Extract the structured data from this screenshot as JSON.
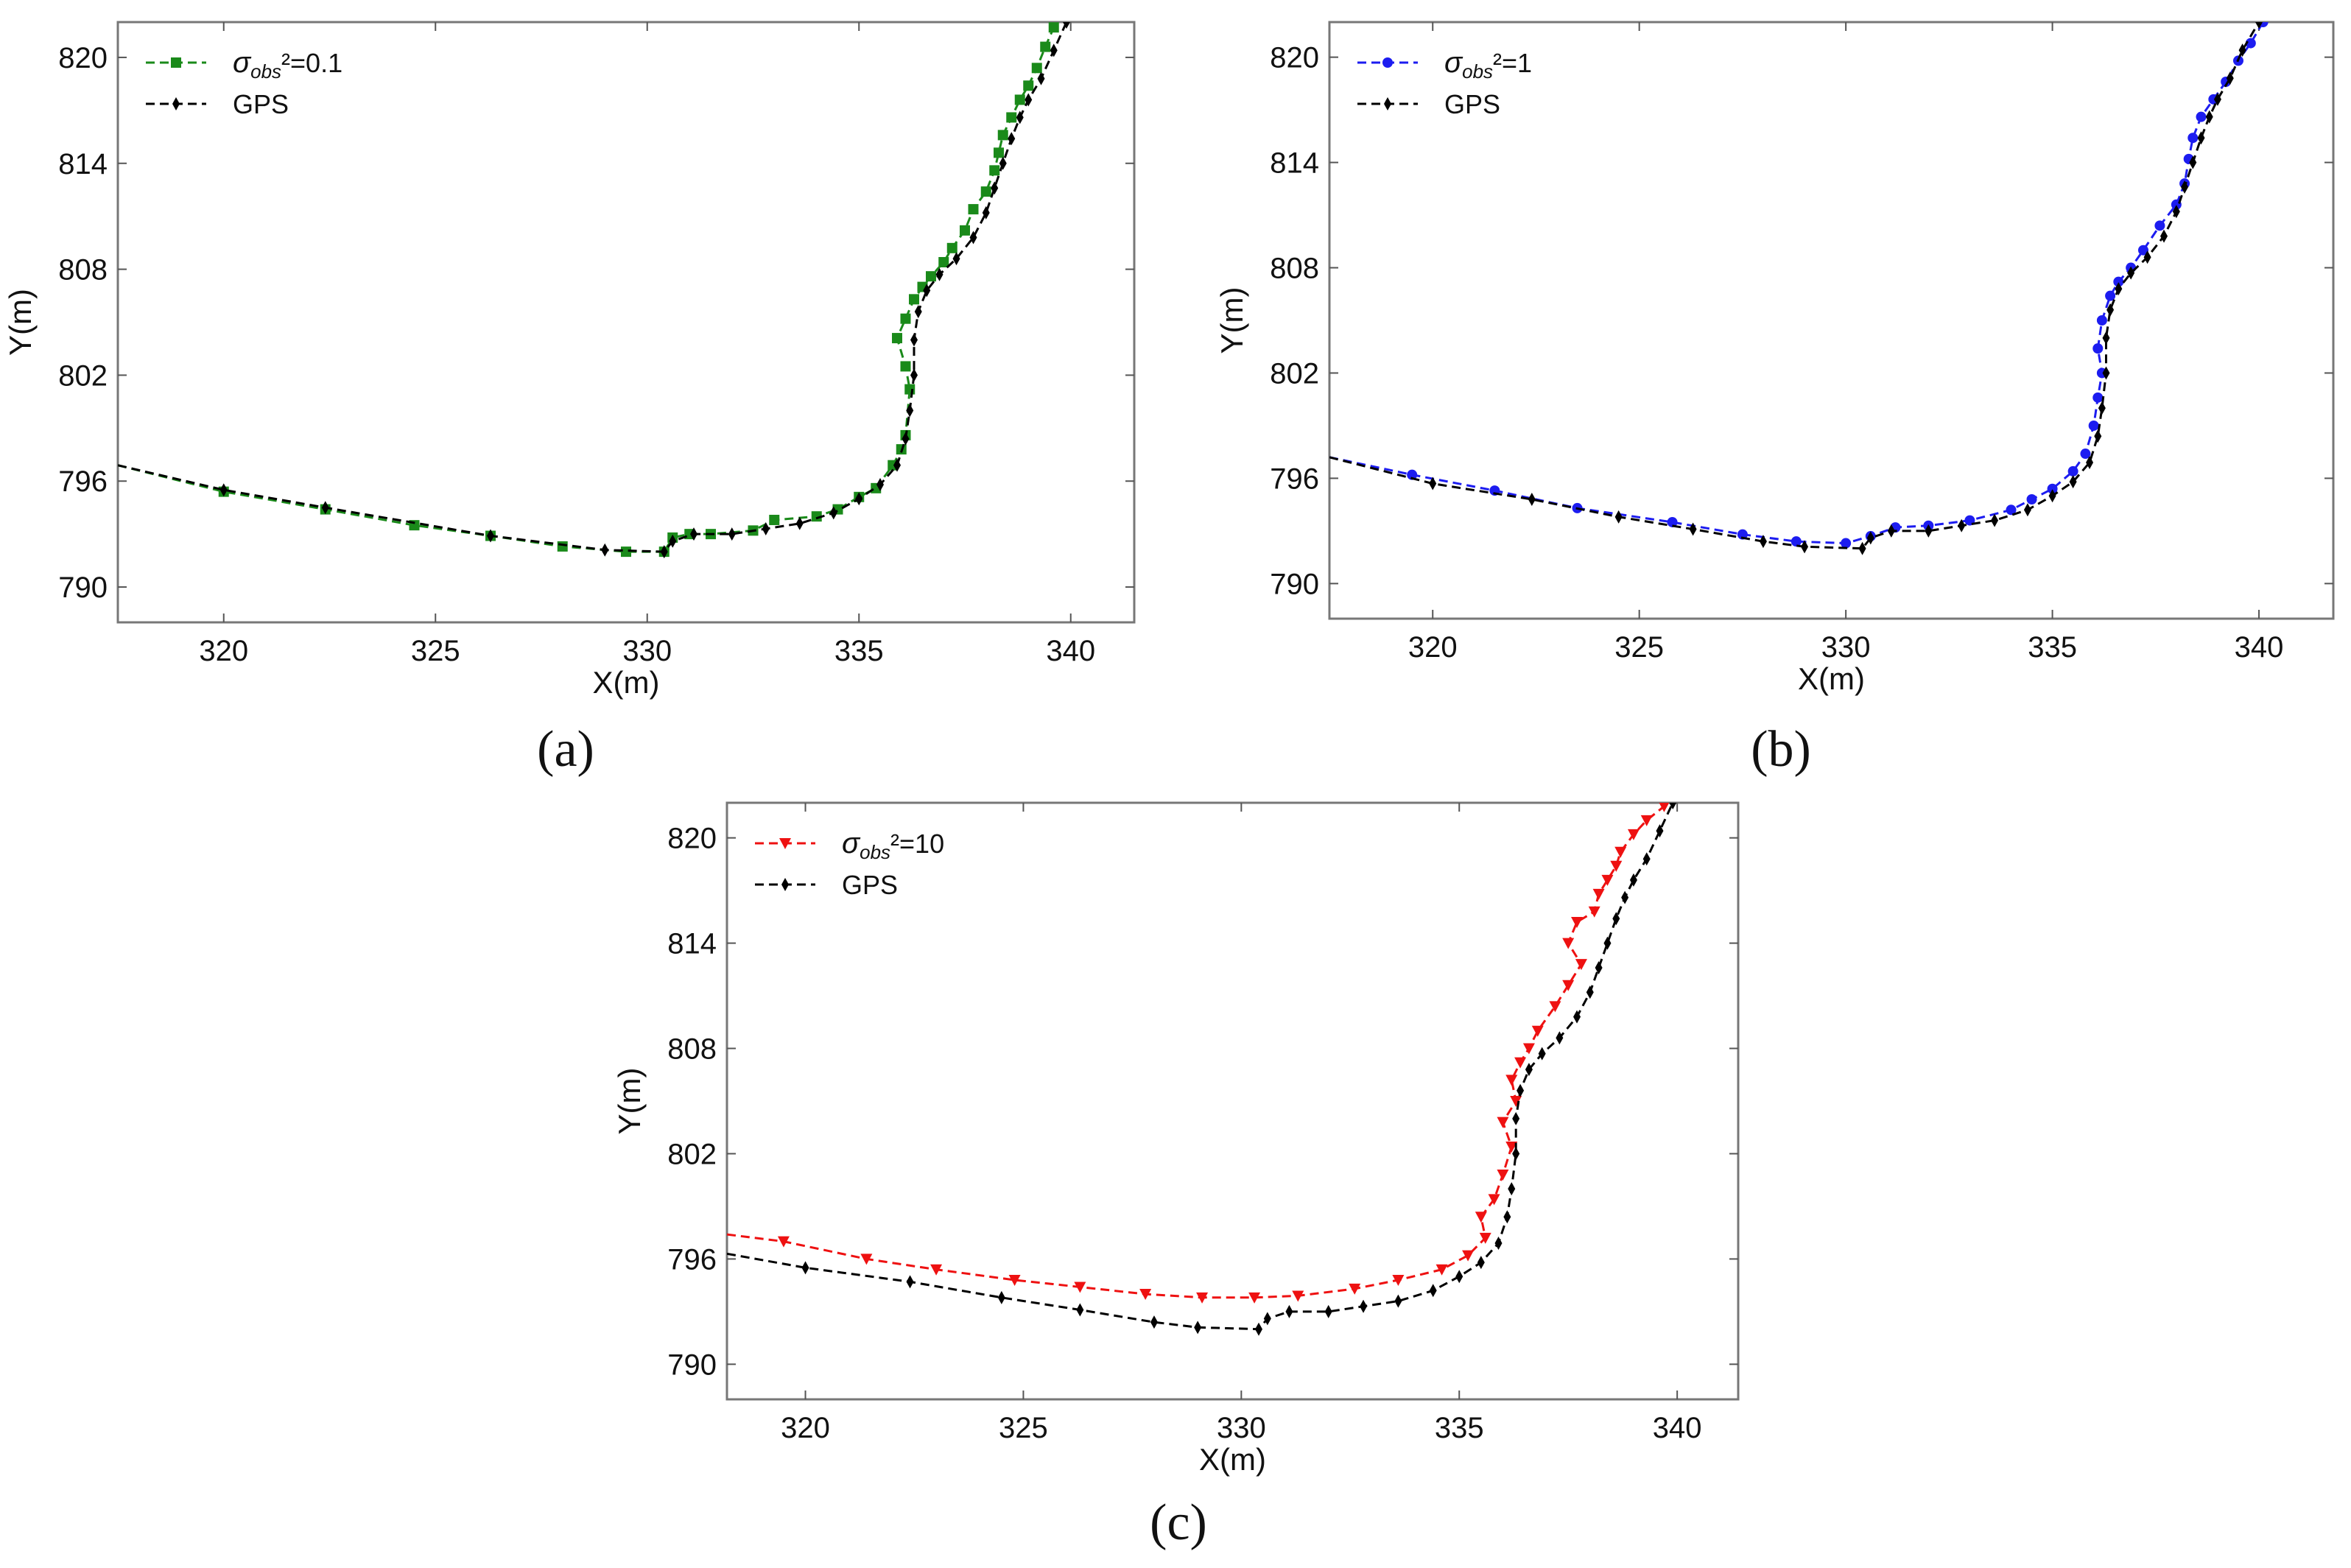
{
  "chart_data": [
    {
      "type": "line",
      "panel_label": "a",
      "xlabel": "X(m)",
      "ylabel": "Y(m)",
      "xlim": [
        317.5,
        341.5
      ],
      "ylim": [
        788,
        822
      ],
      "xticks": [
        320,
        325,
        330,
        335,
        340
      ],
      "yticks": [
        790,
        796,
        802,
        808,
        814,
        820
      ],
      "legend": {
        "location": "top-left",
        "entries": [
          "σobs²=0.1",
          "GPS"
        ]
      },
      "series": [
        {
          "name": "σobs²=0.1",
          "sigma_text": "σ",
          "sub_text": "obs",
          "sup_text": "²=0.1",
          "color": "#1a8a1a",
          "marker": "square",
          "x": [
            317.5,
            320,
            322.4,
            324.5,
            326.3,
            328,
            329.5,
            330.4,
            330.6,
            331,
            331.5,
            332.5,
            333,
            334,
            334.5,
            335,
            335.4,
            335.8,
            336.0,
            336.1,
            336.2,
            336.1,
            335.9,
            336.1,
            336.3,
            336.5,
            336.7,
            337.0,
            337.2,
            337.5,
            337.7,
            338.0,
            338.2,
            338.3,
            338.4,
            338.6,
            338.8,
            339.0,
            339.2,
            339.4,
            339.6
          ],
          "y": [
            796.9,
            795.4,
            794.4,
            793.5,
            792.9,
            792.3,
            792.0,
            792.0,
            792.8,
            793.0,
            793.0,
            793.2,
            793.8,
            794.0,
            794.4,
            795.1,
            795.6,
            796.9,
            797.8,
            798.6,
            801.2,
            802.5,
            804.1,
            805.2,
            806.3,
            807.0,
            807.6,
            808.4,
            809.2,
            810.2,
            811.4,
            812.4,
            813.6,
            814.6,
            815.6,
            816.6,
            817.6,
            818.4,
            819.4,
            820.6,
            821.7
          ]
        },
        {
          "name": "GPS",
          "color": "#000000",
          "marker": "diamond",
          "x": [
            317.5,
            320,
            322.4,
            326.3,
            329.0,
            330.4,
            330.6,
            331.1,
            332.0,
            332.8,
            333.6,
            334.4,
            335.0,
            335.5,
            335.9,
            336.1,
            336.2,
            336.3,
            336.3,
            336.4,
            336.6,
            336.9,
            337.3,
            337.7,
            338.0,
            338.2,
            338.4,
            338.6,
            338.8,
            339.0,
            339.3,
            339.6,
            339.9
          ],
          "y": [
            796.9,
            795.5,
            794.5,
            792.9,
            792.1,
            792.0,
            792.6,
            793.0,
            793.0,
            793.3,
            793.6,
            794.2,
            795.0,
            795.8,
            796.9,
            798.4,
            800.0,
            802.0,
            804.0,
            805.6,
            806.8,
            807.7,
            808.6,
            809.8,
            811.2,
            812.6,
            814.0,
            815.4,
            816.6,
            817.6,
            818.8,
            820.4,
            822.0
          ]
        }
      ]
    },
    {
      "type": "line",
      "panel_label": "b",
      "xlabel": "X(m)",
      "ylabel": "Y(m)",
      "xlim": [
        317.5,
        341.8
      ],
      "ylim": [
        788,
        822
      ],
      "xticks": [
        320,
        325,
        330,
        335,
        340
      ],
      "yticks": [
        790,
        796,
        802,
        808,
        814,
        820
      ],
      "legend": {
        "location": "top-left",
        "entries": [
          "σobs²=1",
          "GPS"
        ]
      },
      "series": [
        {
          "name": "σobs²=1",
          "sigma_text": "σ",
          "sub_text": "obs",
          "sup_text": "²=1",
          "color": "#1c1cf0",
          "marker": "circle",
          "x": [
            317.5,
            319.5,
            321.5,
            323.5,
            325.8,
            327.5,
            328.8,
            330.0,
            330.6,
            331.2,
            332.0,
            333.0,
            334.0,
            334.5,
            335.0,
            335.5,
            335.8,
            336.0,
            336.1,
            336.2,
            336.1,
            336.2,
            336.4,
            336.6,
            336.9,
            337.2,
            337.6,
            338.0,
            338.2,
            338.3,
            338.4,
            338.6,
            338.9,
            339.2,
            339.5,
            339.8,
            340.1
          ],
          "y": [
            797.2,
            796.2,
            795.3,
            794.3,
            793.5,
            792.8,
            792.4,
            792.3,
            792.7,
            793.2,
            793.3,
            793.6,
            794.2,
            794.8,
            795.4,
            796.4,
            797.4,
            799.0,
            800.6,
            802.0,
            803.4,
            805.0,
            806.4,
            807.2,
            808.0,
            809.0,
            810.4,
            811.6,
            812.8,
            814.2,
            815.4,
            816.6,
            817.6,
            818.6,
            819.8,
            820.8,
            822.0
          ]
        },
        {
          "name": "GPS",
          "color": "#000000",
          "marker": "diamond",
          "x": [
            317.5,
            320,
            322.4,
            324.5,
            326.3,
            328.0,
            329.0,
            330.4,
            330.6,
            331.1,
            332.0,
            332.8,
            333.6,
            334.4,
            335.0,
            335.5,
            335.9,
            336.1,
            336.2,
            336.3,
            336.3,
            336.4,
            336.6,
            336.9,
            337.3,
            337.7,
            338.0,
            338.2,
            338.4,
            338.6,
            338.8,
            339.0,
            339.3,
            339.6,
            340.0
          ],
          "y": [
            797.2,
            795.7,
            794.8,
            793.8,
            793.1,
            792.4,
            792.1,
            792.0,
            792.6,
            793.0,
            793.0,
            793.3,
            793.6,
            794.2,
            795.0,
            795.8,
            796.9,
            798.4,
            800.0,
            802.0,
            804.0,
            805.6,
            806.8,
            807.7,
            808.6,
            809.8,
            811.2,
            812.6,
            814.0,
            815.4,
            816.6,
            817.6,
            818.8,
            820.4,
            822.0
          ]
        }
      ]
    },
    {
      "type": "line",
      "panel_label": "c",
      "xlabel": "X(m)",
      "ylabel": "Y(m)",
      "xlim": [
        318.2,
        341.4
      ],
      "ylim": [
        788,
        822
      ],
      "xticks": [
        320,
        325,
        330,
        335,
        340
      ],
      "yticks": [
        790,
        796,
        802,
        808,
        814,
        820
      ],
      "legend": {
        "location": "top-left",
        "entries": [
          "σobs²=10",
          "GPS"
        ]
      },
      "series": [
        {
          "name": "σobs²=10",
          "sigma_text": "σ",
          "sub_text": "obs",
          "sup_text": "²=10",
          "color": "#ee1111",
          "marker": "triangle-down",
          "x": [
            318.2,
            319.5,
            321.4,
            323.0,
            324.8,
            326.3,
            327.8,
            329.1,
            330.3,
            331.3,
            332.6,
            333.6,
            334.6,
            335.2,
            335.6,
            335.5,
            335.8,
            336.0,
            336.2,
            336.0,
            336.3,
            336.2,
            336.4,
            336.6,
            336.8,
            337.2,
            337.5,
            337.8,
            337.5,
            337.7,
            338.1,
            338.2,
            338.4,
            338.6,
            338.7,
            339.0,
            339.3,
            339.7,
            340.0
          ],
          "y": [
            797.4,
            797.0,
            796.0,
            795.4,
            794.8,
            794.4,
            794.0,
            793.8,
            793.8,
            793.9,
            794.3,
            794.8,
            795.4,
            796.2,
            797.2,
            798.4,
            799.4,
            800.8,
            802.4,
            803.8,
            805.0,
            806.2,
            807.2,
            808.0,
            809.0,
            810.4,
            811.6,
            812.8,
            814.0,
            815.2,
            815.8,
            816.8,
            817.6,
            818.4,
            819.2,
            820.2,
            821.0,
            821.8,
            822.4
          ]
        },
        {
          "name": "GPS",
          "color": "#000000",
          "marker": "diamond",
          "x": [
            318.2,
            320,
            322.4,
            324.5,
            326.3,
            328.0,
            329.0,
            330.4,
            330.6,
            331.1,
            332.0,
            332.8,
            333.6,
            334.4,
            335.0,
            335.5,
            335.9,
            336.1,
            336.2,
            336.3,
            336.3,
            336.4,
            336.6,
            336.9,
            337.3,
            337.7,
            338.0,
            338.2,
            338.4,
            338.6,
            338.8,
            339.0,
            339.3,
            339.6,
            339.9
          ],
          "y": [
            796.3,
            795.5,
            794.7,
            793.8,
            793.1,
            792.4,
            792.1,
            792.0,
            792.6,
            793.0,
            793.0,
            793.3,
            793.6,
            794.2,
            795.0,
            795.8,
            796.9,
            798.4,
            800.0,
            802.0,
            804.0,
            805.6,
            806.8,
            807.7,
            808.6,
            809.8,
            811.2,
            812.6,
            814.0,
            815.4,
            816.6,
            817.6,
            818.8,
            820.4,
            822.0
          ]
        }
      ]
    }
  ],
  "captions": [
    "(a)",
    "(b)",
    "(c)"
  ]
}
